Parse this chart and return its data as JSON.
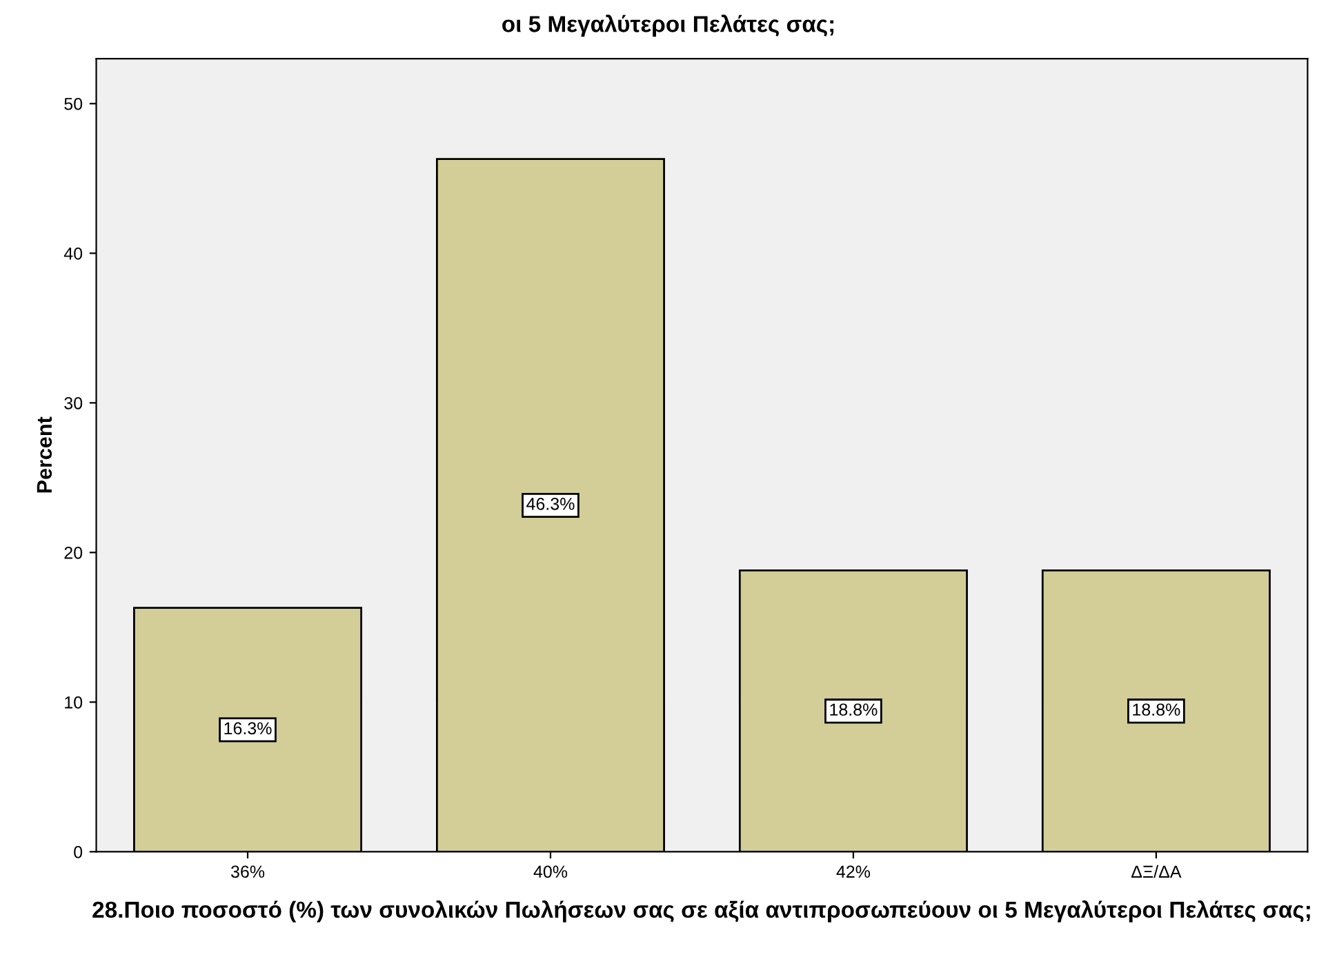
{
  "chart_data": {
    "type": "bar",
    "title": "οι 5 Μεγαλύτεροι Πελάτες σας;",
    "xlabel": "28.Ποιο ποσοστό (%) των συνολικών Πωλήσεων σας σε αξία αντιπροσωπεύουν οι 5 Μεγαλύτεροι Πελάτες σας;",
    "ylabel": "Percent",
    "categories": [
      "36%",
      "40%",
      "42%",
      "ΔΞ/ΔΑ"
    ],
    "values": [
      16.3,
      46.3,
      18.8,
      18.8
    ],
    "value_labels": [
      "16.3%",
      "46.3%",
      "18.8%",
      "18.8%"
    ],
    "color": "#d3ce97",
    "ylim": [
      0,
      53
    ],
    "yticks": [
      0,
      10,
      20,
      30,
      40,
      50
    ],
    "grid": false
  }
}
